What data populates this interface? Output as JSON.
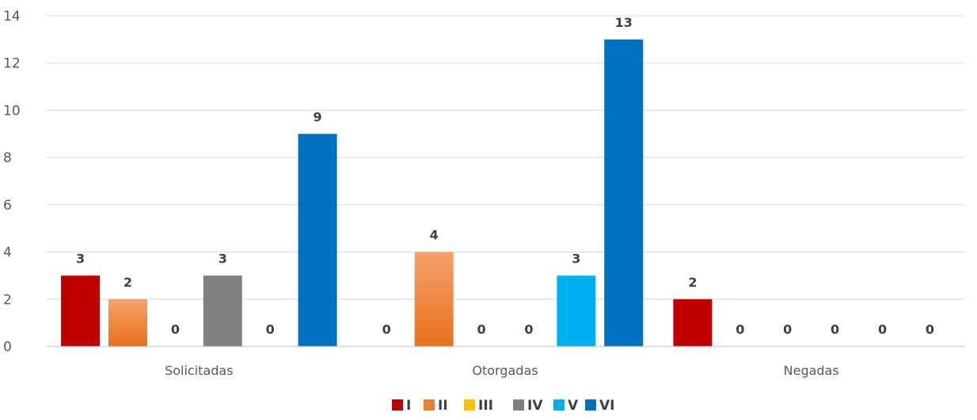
{
  "chart_data": {
    "type": "bar",
    "title": "",
    "xlabel": "",
    "ylabel": "",
    "categories": [
      "Solicitadas",
      "Otorgadas",
      "Negadas"
    ],
    "ylim": [
      0,
      14
    ],
    "yticks": [
      0,
      2,
      4,
      6,
      8,
      10,
      12,
      14
    ],
    "grid": true,
    "legend": "bottom",
    "series": [
      {
        "name": "I",
        "color": "#c00000",
        "values": [
          3,
          0,
          2
        ]
      },
      {
        "name": "II",
        "color": "#ed7d31",
        "values": [
          2,
          4,
          0
        ]
      },
      {
        "name": "III",
        "color": "#ffc000",
        "values": [
          0,
          0,
          0
        ]
      },
      {
        "name": "IV",
        "color": "#808080",
        "values": [
          3,
          0,
          0
        ]
      },
      {
        "name": "V",
        "color": "#00b0f0",
        "values": [
          0,
          3,
          0
        ]
      },
      {
        "name": "VI",
        "color": "#0070c0",
        "values": [
          9,
          13,
          0
        ]
      }
    ]
  }
}
